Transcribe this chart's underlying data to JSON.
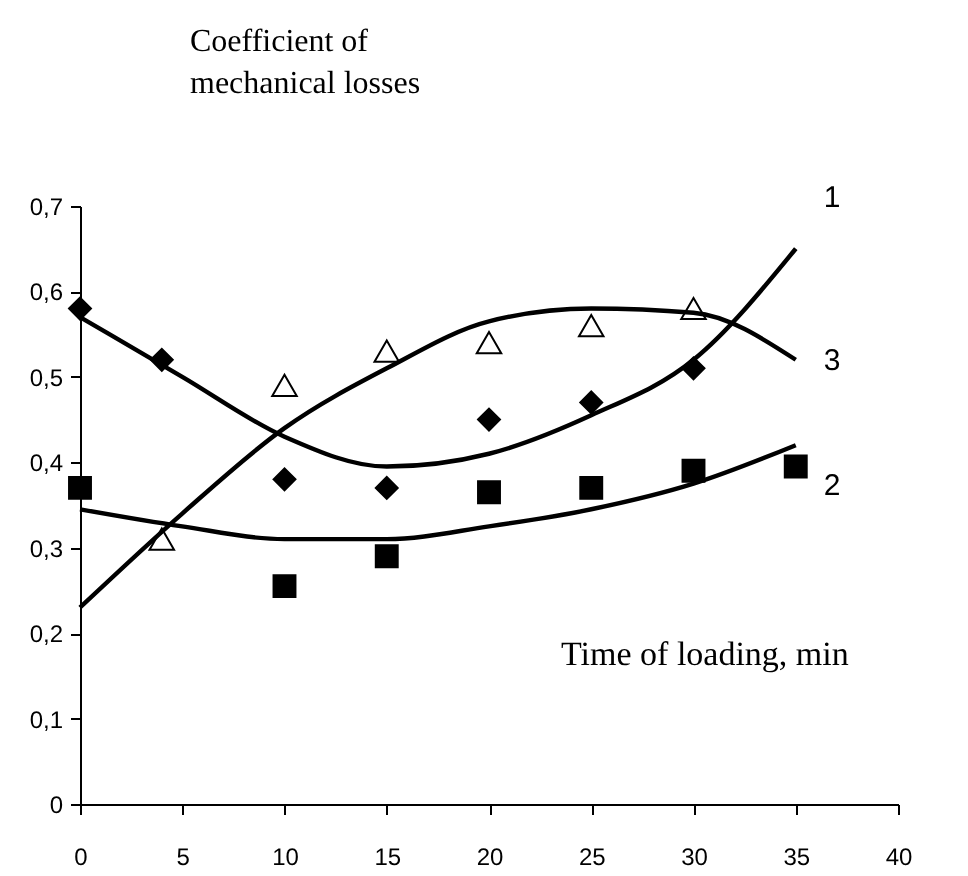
{
  "chart_data": {
    "type": "scatter",
    "title": "Coefficient of mechanical losses",
    "xlabel": "Time of loading, min",
    "xlim": [
      0,
      40
    ],
    "xticks": [
      0,
      5,
      10,
      15,
      20,
      25,
      30,
      35,
      40
    ],
    "ylim": [
      0,
      0.7
    ],
    "yticks": [
      {
        "value": 0,
        "label": "0"
      },
      {
        "value": 0.1,
        "label": "0,1"
      },
      {
        "value": 0.2,
        "label": "0,2"
      },
      {
        "value": 0.3,
        "label": "0,3"
      },
      {
        "value": 0.4,
        "label": "0,4"
      },
      {
        "value": 0.5,
        "label": "0,5"
      },
      {
        "value": 0.6,
        "label": "0,6"
      },
      {
        "value": 0.7,
        "label": "0,7"
      }
    ],
    "grid": false,
    "series": [
      {
        "marker": "diamond",
        "color": "#000000",
        "x": [
          0,
          4,
          10,
          15,
          20,
          25,
          30
        ],
        "values": [
          0.58,
          0.52,
          0.38,
          0.37,
          0.45,
          0.47,
          0.51
        ]
      },
      {
        "marker": "square",
        "color": "#000000",
        "x": [
          0,
          10,
          15,
          20,
          25,
          30,
          35
        ],
        "values": [
          0.37,
          0.255,
          0.29,
          0.365,
          0.37,
          0.39,
          0.395
        ]
      },
      {
        "marker": "triangle",
        "color": "#000000",
        "x": [
          4,
          10,
          15,
          20,
          25,
          30
        ],
        "values": [
          0.31,
          0.49,
          0.53,
          0.54,
          0.56,
          0.58
        ]
      },
      {
        "type": "line",
        "name": "1",
        "color": "#000000",
        "line_style": "solid",
        "x": [
          0,
          5,
          10,
          15,
          20,
          25,
          30,
          35
        ],
        "values": [
          0.57,
          0.5,
          0.43,
          0.395,
          0.41,
          0.455,
          0.52,
          0.65
        ]
      },
      {
        "type": "line",
        "name": "2",
        "color": "#000000",
        "line_style": "solid",
        "x": [
          0,
          5,
          10,
          15,
          20,
          25,
          30,
          35
        ],
        "values": [
          0.345,
          0.325,
          0.31,
          0.31,
          0.325,
          0.345,
          0.375,
          0.42
        ]
      },
      {
        "type": "line",
        "name": "3",
        "color": "#000000",
        "line_style": "solid",
        "x": [
          0,
          5,
          10,
          15,
          20,
          25,
          30,
          35
        ],
        "values": [
          0.23,
          0.34,
          0.44,
          0.51,
          0.565,
          0.58,
          0.575,
          0.52
        ]
      }
    ]
  }
}
